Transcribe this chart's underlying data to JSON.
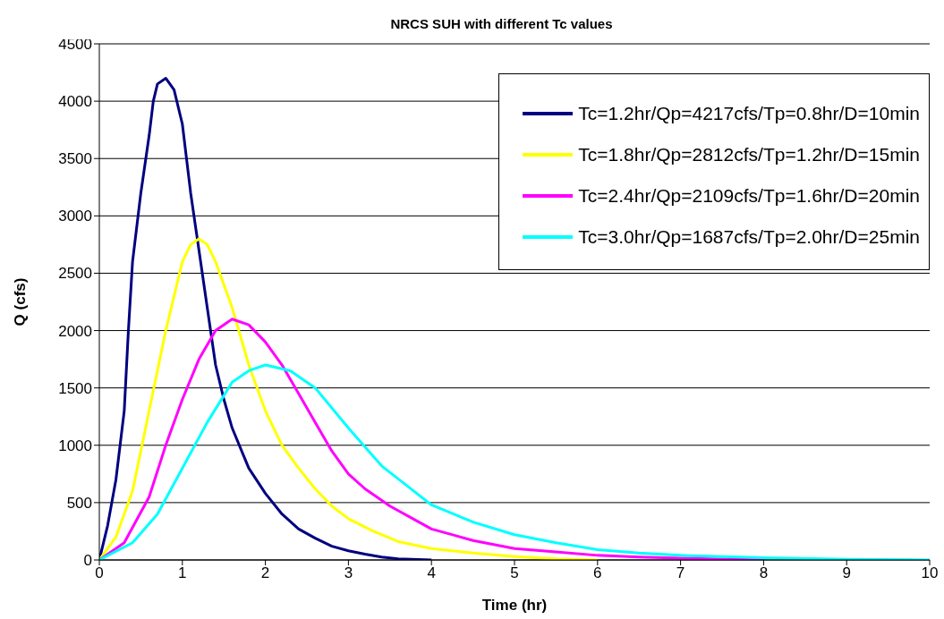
{
  "chart_data": {
    "type": "line",
    "title": "NRCS SUH with different Tc values",
    "xlabel": "Time (hr)",
    "ylabel": "Q (cfs)",
    "xlim": [
      0,
      10
    ],
    "xticks": [
      0,
      1,
      2,
      3,
      4,
      5,
      6,
      7,
      8,
      9,
      10
    ],
    "ylim": [
      0,
      4500
    ],
    "yticks": [
      0,
      500,
      1000,
      1500,
      2000,
      2500,
      3000,
      3500,
      4000,
      4500
    ],
    "grid": "y",
    "legend": "top right",
    "marker": "none",
    "line_style": "solid",
    "series": [
      {
        "name": "Tc=1.2hr/Qp=4217cfs/Tp=0.8hr/D=10min",
        "color": "#000080",
        "x": [
          0,
          0.1,
          0.2,
          0.3,
          0.35,
          0.4,
          0.5,
          0.6,
          0.65,
          0.7,
          0.8,
          0.9,
          1.0,
          1.1,
          1.2,
          1.3,
          1.4,
          1.5,
          1.6,
          1.8,
          2.0,
          2.2,
          2.4,
          2.6,
          2.8,
          3.0,
          3.2,
          3.4,
          3.6,
          4.0
        ],
        "values": [
          0,
          300,
          700,
          1300,
          2000,
          2600,
          3200,
          3700,
          4000,
          4150,
          4200,
          4100,
          3800,
          3200,
          2700,
          2200,
          1700,
          1400,
          1150,
          800,
          580,
          400,
          270,
          190,
          120,
          80,
          50,
          25,
          10,
          0
        ]
      },
      {
        "name": "Tc=1.8hr/Qp=2812cfs/Tp=1.2hr/D=15min",
        "color": "#ffff00",
        "x": [
          0,
          0.2,
          0.4,
          0.6,
          0.8,
          1.0,
          1.1,
          1.2,
          1.3,
          1.4,
          1.6,
          1.8,
          2.0,
          2.2,
          2.4,
          2.6,
          2.8,
          3.0,
          3.3,
          3.6,
          4.0,
          4.5,
          5.0,
          5.5,
          6.0
        ],
        "values": [
          0,
          200,
          600,
          1300,
          2000,
          2600,
          2750,
          2800,
          2750,
          2600,
          2200,
          1700,
          1300,
          1000,
          800,
          620,
          470,
          360,
          250,
          160,
          100,
          60,
          30,
          10,
          0
        ]
      },
      {
        "name": "Tc=2.4hr/Qp=2109cfs/Tp=1.6hr/D=20min",
        "color": "#ff00ff",
        "x": [
          0,
          0.3,
          0.6,
          0.8,
          1.0,
          1.2,
          1.4,
          1.6,
          1.8,
          2.0,
          2.2,
          2.4,
          2.6,
          2.8,
          3.0,
          3.2,
          3.5,
          3.8,
          4.0,
          4.5,
          5.0,
          5.5,
          6.0,
          6.5,
          7.0,
          8.0
        ],
        "values": [
          0,
          150,
          550,
          1000,
          1400,
          1750,
          2000,
          2100,
          2050,
          1900,
          1700,
          1450,
          1200,
          950,
          750,
          620,
          470,
          350,
          270,
          170,
          100,
          70,
          40,
          25,
          15,
          0
        ]
      },
      {
        "name": "Tc=3.0hr/Qp=1687cfs/Tp=2.0hr/D=25min",
        "color": "#00ffff",
        "x": [
          0,
          0.4,
          0.7,
          1.0,
          1.3,
          1.6,
          1.8,
          2.0,
          2.3,
          2.6,
          3.0,
          3.4,
          3.7,
          4.0,
          4.5,
          5.0,
          5.5,
          6.0,
          6.5,
          7.0,
          8.0,
          9.0,
          10.0
        ],
        "values": [
          0,
          150,
          400,
          800,
          1200,
          1550,
          1650,
          1700,
          1650,
          1500,
          1150,
          820,
          650,
          480,
          330,
          220,
          150,
          90,
          60,
          40,
          20,
          5,
          0
        ]
      }
    ]
  }
}
